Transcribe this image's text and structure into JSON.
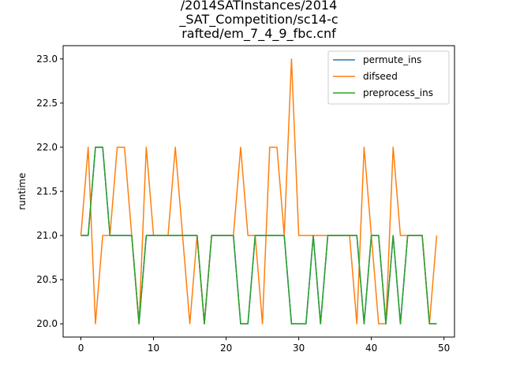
{
  "chart_data": {
    "type": "line",
    "title": [
      "/2014SATInstances/2014",
      "_SAT_Competition/sc14-c",
      "rafted/em_7_4_9_fbc.cnf"
    ],
    "xlabel": "",
    "ylabel": "runtime",
    "xlim": [
      -2.45,
      51.45
    ],
    "ylim": [
      19.85,
      23.15
    ],
    "xticks": [
      0,
      10,
      20,
      30,
      40,
      50
    ],
    "yticks": [
      20.0,
      20.5,
      21.0,
      21.5,
      22.0,
      22.5,
      23.0
    ],
    "ytick_labels": [
      "20.0",
      "20.5",
      "21.0",
      "21.5",
      "22.0",
      "22.5",
      "23.0"
    ],
    "legend_position": "top-right",
    "x": [
      0,
      1,
      2,
      3,
      4,
      5,
      6,
      7,
      8,
      9,
      10,
      11,
      12,
      13,
      14,
      15,
      16,
      17,
      18,
      19,
      20,
      21,
      22,
      23,
      24,
      25,
      26,
      27,
      28,
      29,
      30,
      31,
      32,
      33,
      34,
      35,
      36,
      37,
      38,
      39,
      40,
      41,
      42,
      43,
      44,
      45,
      46,
      47,
      48,
      49
    ],
    "series": [
      {
        "name": "permute_ins",
        "color": "#1f77b4",
        "values": [
          21,
          21,
          22,
          22,
          21,
          21,
          21,
          21,
          20,
          21,
          21,
          21,
          21,
          21,
          21,
          21,
          21,
          20,
          21,
          21,
          21,
          21,
          20,
          20,
          21,
          21,
          21,
          21,
          21,
          20,
          20,
          20,
          21,
          20,
          21,
          21,
          21,
          21,
          21,
          20,
          21,
          21,
          20,
          21,
          20,
          21,
          21,
          21,
          20,
          20
        ]
      },
      {
        "name": "difseed",
        "color": "#ff7f0e",
        "values": [
          21,
          22,
          20,
          21,
          21,
          22,
          22,
          21,
          20,
          22,
          21,
          21,
          21,
          22,
          21,
          20,
          21,
          20,
          21,
          21,
          21,
          21,
          22,
          21,
          21,
          20,
          22,
          22,
          21,
          23,
          21,
          21,
          21,
          21,
          21,
          21,
          21,
          21,
          20,
          22,
          21,
          20,
          20,
          22,
          21,
          21,
          21,
          21,
          20,
          21
        ]
      },
      {
        "name": "preprocess_ins",
        "color": "#2ca02c",
        "values": [
          21,
          21,
          22,
          22,
          21,
          21,
          21,
          21,
          20,
          21,
          21,
          21,
          21,
          21,
          21,
          21,
          21,
          20,
          21,
          21,
          21,
          21,
          20,
          20,
          21,
          21,
          21,
          21,
          21,
          20,
          20,
          20,
          21,
          20,
          21,
          21,
          21,
          21,
          21,
          20,
          21,
          21,
          20,
          21,
          20,
          21,
          21,
          21,
          20,
          20
        ]
      }
    ]
  }
}
